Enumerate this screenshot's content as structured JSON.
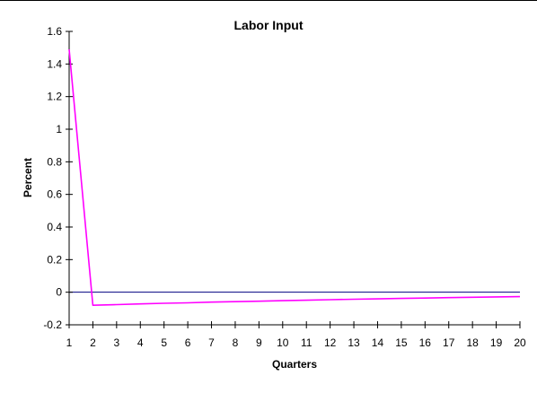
{
  "chart_data": {
    "type": "line",
    "title": "Labor Input",
    "xlabel": "Quarters",
    "ylabel": "Percent",
    "x": [
      1,
      2,
      3,
      4,
      5,
      6,
      7,
      8,
      9,
      10,
      11,
      12,
      13,
      14,
      15,
      16,
      17,
      18,
      19,
      20
    ],
    "xlim": [
      1,
      20
    ],
    "ylim": [
      -0.2,
      1.6
    ],
    "yticks": [
      -0.2,
      0,
      0.2,
      0.4,
      0.6,
      0.8,
      1,
      1.2,
      1.4,
      1.6
    ],
    "ytick_labels": [
      "-0.2",
      "0",
      "0.2",
      "0.4",
      "0.6",
      "0.8",
      "1",
      "1.2",
      "1.4",
      "1.6"
    ],
    "xtick_labels": [
      "1",
      "2",
      "3",
      "4",
      "5",
      "6",
      "7",
      "8",
      "9",
      "10",
      "11",
      "12",
      "13",
      "14",
      "15",
      "16",
      "17",
      "18",
      "19",
      "20"
    ],
    "grid": false,
    "legend": "none",
    "zero_line": {
      "y": 0,
      "color": "#000080"
    },
    "series": [
      {
        "color": "#ff00ff",
        "values": [
          1.49,
          -0.08,
          -0.076,
          -0.072,
          -0.068,
          -0.065,
          -0.061,
          -0.058,
          -0.055,
          -0.052,
          -0.049,
          -0.046,
          -0.043,
          -0.041,
          -0.038,
          -0.036,
          -0.033,
          -0.031,
          -0.029,
          -0.027
        ]
      }
    ]
  }
}
